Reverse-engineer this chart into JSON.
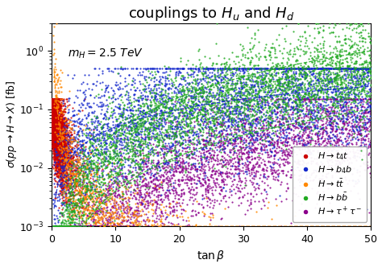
{
  "title": "couplings to $H_u$ and $H_d$",
  "xlabel": "$\\tan\\beta$",
  "ylabel": "$\\sigma(pp\\rightarrow H\\rightarrow X)$ [fb]",
  "annotation": "$m_H = 2.5$ TeV",
  "xlim": [
    0,
    50
  ],
  "ylim": [
    0.001,
    3.0
  ],
  "series": [
    {
      "label": "$H\\rightarrow t_4 t$",
      "color": "#cc0000",
      "zorder": 3
    },
    {
      "label": "$H\\rightarrow b_4 b$",
      "color": "#1428cc",
      "zorder": 4
    },
    {
      "label": "$H\\rightarrow t\\bar{t}$",
      "color": "#ff8800",
      "zorder": 5
    },
    {
      "label": "$H\\rightarrow b\\bar{b}$",
      "color": "#22aa22",
      "zorder": 6
    },
    {
      "label": "$H\\rightarrow \\tau^+\\tau^-$",
      "color": "#8b008b",
      "zorder": 2
    }
  ],
  "n_points": 4000,
  "seed": 17,
  "background_color": "#ffffff",
  "title_fontsize": 13,
  "label_fontsize": 10,
  "tick_fontsize": 9,
  "legend_fontsize": 8,
  "point_size": 2.5
}
